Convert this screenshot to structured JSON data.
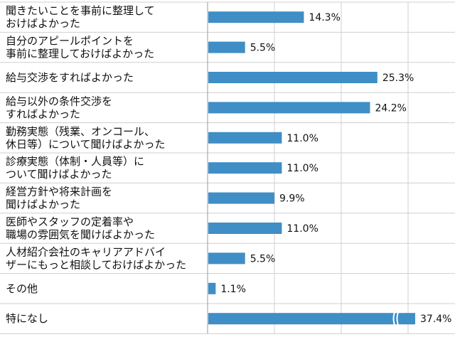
{
  "chart_data": {
    "type": "bar",
    "orientation": "horizontal",
    "categories": [
      [
        "聞きたいことを事前に整理して",
        "おけばよかった"
      ],
      [
        "自分のアピールポイントを",
        "事前に整理しておけばよかった"
      ],
      [
        "給与交渉をすればよかった"
      ],
      [
        "給与以外の条件交渉を",
        "すればよかった"
      ],
      [
        "勤務実態（残業、オンコール、",
        "休日等）について聞けばよかった"
      ],
      [
        "診療実態（体制・人員等）に",
        "ついて聞けばよかった"
      ],
      [
        "経営方針や将来計画を",
        "聞けばよかった"
      ],
      [
        "医師やスタッフの定着率や",
        "職場の雰囲気を聞けばよかった"
      ],
      [
        "人材紹介会社のキャリアアドバイ",
        "ザーにもっと相談しておけばよかった"
      ],
      [
        "その他"
      ],
      [
        "特になし"
      ]
    ],
    "values": [
      14.3,
      5.5,
      25.3,
      24.2,
      11.0,
      11.0,
      9.9,
      11.0,
      5.5,
      1.1,
      37.4
    ],
    "value_labels": [
      "14.3%",
      "5.5%",
      "25.3%",
      "24.2%",
      "11.0%",
      "11.0%",
      "9.9%",
      "11.0%",
      "5.5%",
      "1.1%",
      "37.4%"
    ],
    "axis_break_on": [
      "特になし"
    ],
    "grid": true,
    "xlim": [
      0,
      30
    ],
    "grid_step": 10,
    "colors": {
      "bar": "#3f8ec6",
      "grid": "#cfcfcf",
      "separator": "#cfcfcf",
      "axis": "#9a9a9a",
      "break_mark": "#ffffff"
    },
    "title": "",
    "xlabel": "",
    "ylabel": ""
  }
}
